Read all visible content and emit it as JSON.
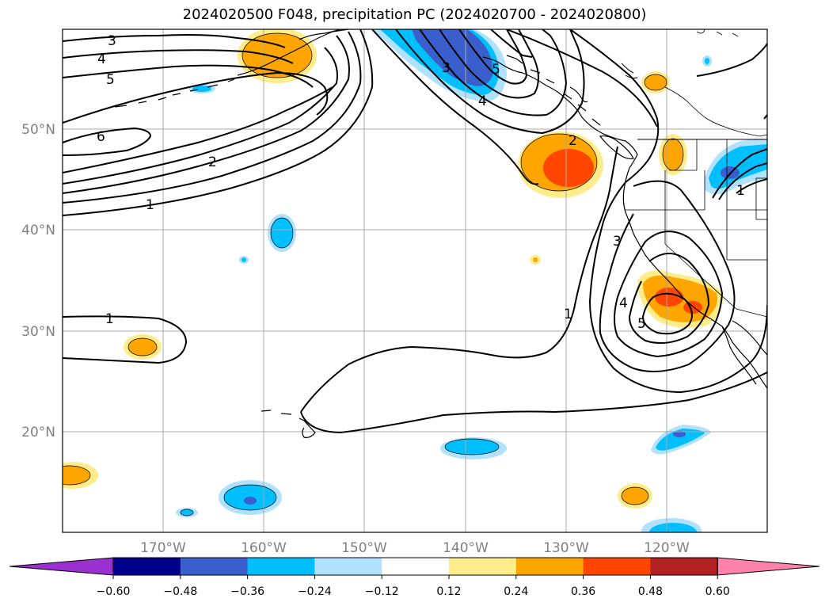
{
  "title": "2024020500 F048, precipitation PC (2024020700 - 2024020800)",
  "lat_labels": [
    "50°N",
    "40°N",
    "30°N",
    "20°N"
  ],
  "lon_labels": [
    "170°W",
    "160°W",
    "150°W",
    "140°W",
    "130°W",
    "120°W"
  ],
  "colorbar": {
    "colors": [
      "#9b30d0",
      "#00008b",
      "#3a5fcd",
      "#00bfff",
      "#b0e2ff",
      "#ffffff",
      "#ffec8b",
      "#ffa500",
      "#ff4500",
      "#b22222",
      "#ff82ab"
    ],
    "tick_labels": [
      "−0.60",
      "−0.48",
      "−0.36",
      "−0.24",
      "−0.12",
      "0.12",
      "0.24",
      "0.36",
      "0.48",
      "0.60"
    ]
  },
  "contour_labels": [
    "3",
    "4",
    "5",
    "6",
    "2",
    "1",
    "1",
    "3",
    "5",
    "4",
    "2",
    "1",
    "3",
    "4",
    "5",
    "1"
  ]
}
